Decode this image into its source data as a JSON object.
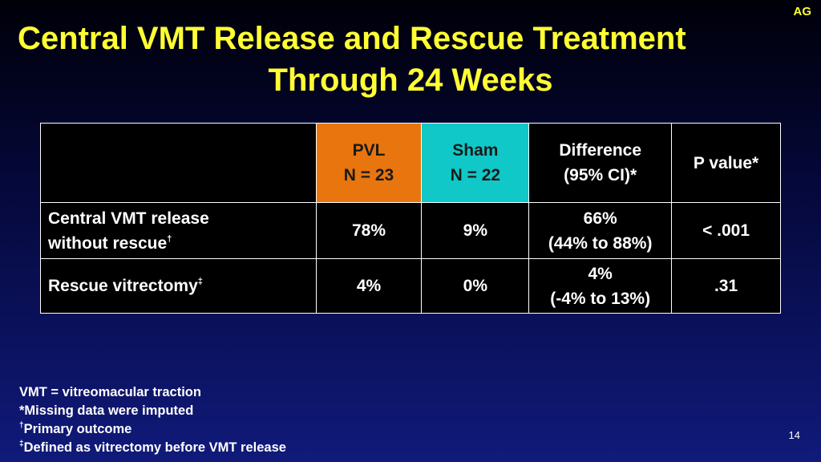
{
  "corner_label": "AG",
  "title": {
    "line1": "Central VMT Release and Rescue Treatment",
    "line2": "Through 24 Weeks"
  },
  "colors": {
    "title": "#ffff33",
    "pvl_header": "#e8750e",
    "sham_header": "#10c8c8",
    "table_bg": "#000000"
  },
  "table": {
    "headers": [
      {
        "line1": "",
        "line2": ""
      },
      {
        "line1": "PVL",
        "line2": "N = 23"
      },
      {
        "line1": "Sham",
        "line2": "N = 22"
      },
      {
        "line1": "Difference",
        "line2": "(95% CI)*"
      },
      {
        "line1": "P value*",
        "line2": ""
      }
    ],
    "rows": [
      {
        "label_line1": "Central VMT release",
        "label_line2": "without rescue",
        "label_mark": "†",
        "pvl": "78%",
        "sham": "9%",
        "diff_line1": "66%",
        "diff_line2": "(44% to 88%)",
        "p": "< .001"
      },
      {
        "label_line1": "Rescue vitrectomy",
        "label_mark": "‡",
        "pvl": "4%",
        "sham": "0%",
        "diff_line1": "4%",
        "diff_line2": "(-4% to 13%)",
        "p": ".31"
      }
    ]
  },
  "footnotes": {
    "line1": "VMT = vitreomacular traction",
    "line2": "*Missing data were imputed",
    "line3_mark": "†",
    "line3": "Primary outcome",
    "line4_mark": "‡",
    "line4": "Defined as vitrectomy before VMT release"
  },
  "page_number": "14"
}
